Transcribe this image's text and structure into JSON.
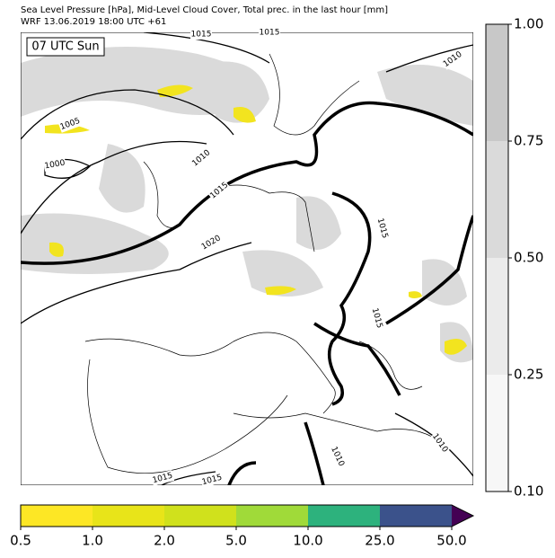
{
  "header": {
    "title": "Sea Level Pressure [hPa], Mid-Level Cloud Cover, Total prec. in the last hour [mm]",
    "subtitle": "WRF 13.06.2019 18:00 UTC +61"
  },
  "map": {
    "time_label": "07 UTC Sun",
    "contour_labels": [
      "1015",
      "1010",
      "1005",
      "1000",
      "1010",
      "1015",
      "1020",
      "1015",
      "1015",
      "1010",
      "1015",
      "1015",
      "1015",
      "1010"
    ]
  },
  "cloud_colorbar": {
    "ticks": [
      "0.10",
      "0.25",
      "0.50",
      "0.75",
      "1.00"
    ]
  },
  "precip_colorbar": {
    "ticks": [
      "0.5",
      "1.0",
      "2.0",
      "5.0",
      "10.0",
      "25.0",
      "50.0"
    ]
  }
}
